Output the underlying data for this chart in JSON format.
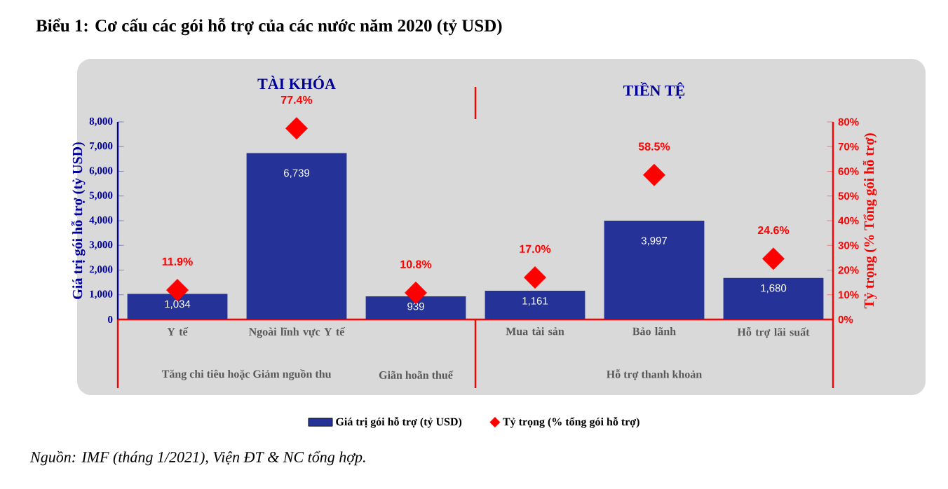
{
  "chart_data": {
    "type": "bar",
    "title": "Biểu 1: Cơ cấu các gói hỗ trợ của các nước năm 2020 (tỷ USD)",
    "categories": [
      "Y tế",
      "Ngoài lĩnh vực Y tế",
      null,
      "Mua tài sản",
      "Bảo lãnh",
      "Hỗ trợ lãi suất"
    ],
    "series": [
      {
        "name": "Giá trị gói hỗ trợ (tỷ USD)",
        "color": "#253399",
        "values": [
          1034,
          6739,
          939,
          1161,
          3997,
          1680
        ],
        "value_labels": [
          "1,034",
          "6,739",
          "939",
          "1,161",
          "3,997",
          "1,680"
        ]
      },
      {
        "name": "Tỷ trọng (% tổng gói hỗ trợ)",
        "type": "scatter",
        "axis": "y2",
        "color": "#ff0000",
        "values": [
          11.9,
          77.4,
          10.8,
          17.0,
          58.5,
          24.6
        ],
        "value_labels": [
          "11.9%",
          "77.4%",
          "10.8%",
          "17.0%",
          "58.5%",
          "24.6%"
        ]
      }
    ],
    "ylabel": "Giá trị gói hỗ trợ (tỷ USD)",
    "y2label": "Tỷ trọng (% Tổng gói hỗ trợ)",
    "ylim": [
      0,
      8000
    ],
    "yticks": [
      {
        "value": 0,
        "label": "0"
      },
      {
        "value": 1000,
        "label": "1,000"
      },
      {
        "value": 2000,
        "label": "2,000"
      },
      {
        "value": 3000,
        "label": "3,000"
      },
      {
        "value": 4000,
        "label": "4,000"
      },
      {
        "value": 5000,
        "label": "5,000"
      },
      {
        "value": 6000,
        "label": "6,000"
      },
      {
        "value": 7000,
        "label": "7,000"
      },
      {
        "value": 8000,
        "label": "8,000"
      }
    ],
    "y2lim": [
      0,
      80
    ],
    "y2ticks": [
      {
        "value": 0,
        "label": "0%"
      },
      {
        "value": 10,
        "label": "10%"
      },
      {
        "value": 20,
        "label": "20%"
      },
      {
        "value": 30,
        "label": "30%"
      },
      {
        "value": 40,
        "label": "40%"
      },
      {
        "value": 50,
        "label": "50%"
      },
      {
        "value": 60,
        "label": "60%"
      },
      {
        "value": 70,
        "label": "70%"
      },
      {
        "value": 80,
        "label": "80%"
      }
    ],
    "annotations": [
      "TÀI KHÓA",
      "TIỀN TỆ",
      "Tăng chi tiêu hoặc Giảm nguồn thu",
      "Giãn hoãn thuế",
      "Hỗ trợ thanh khoản",
      "Nguồn: IMF (tháng 1/2021), Viện ĐT & NC tổng hợp."
    ],
    "marker": "diamond",
    "legend": "bottom",
    "grid": false
  }
}
